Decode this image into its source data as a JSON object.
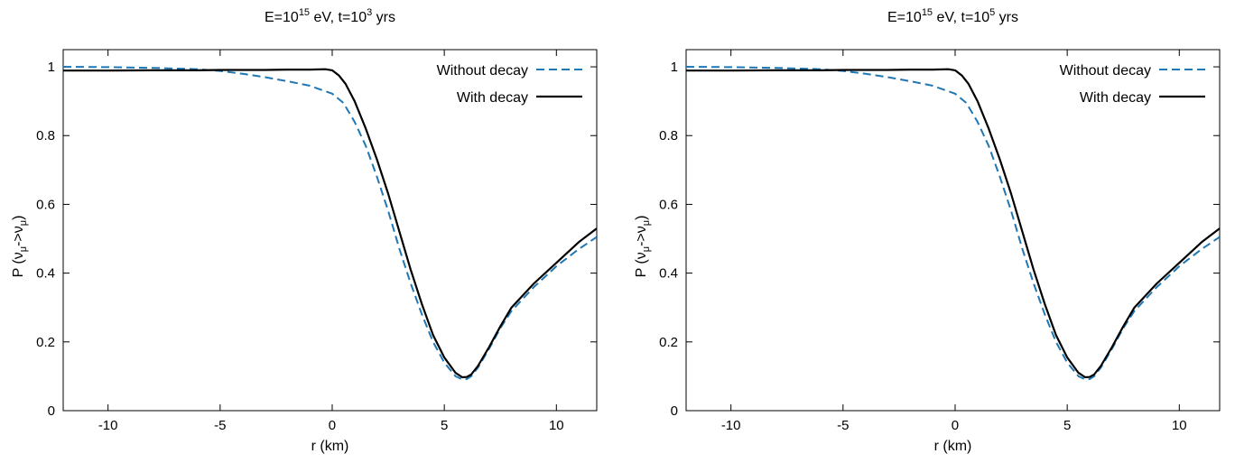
{
  "chart_data": [
    {
      "type": "line",
      "title": {
        "base": "E=10",
        "sup1": "15",
        "mid": " eV, t=10",
        "sup2": "3",
        "tail": " yrs"
      },
      "xlabel": "r (km)",
      "ylabel": {
        "p": "P (",
        "nu1": "ν",
        "sub1": "μ",
        "arrow": "->",
        "nu2": "ν",
        "sub2": "μ",
        "close": ")"
      },
      "xlim": [
        -12,
        11.8
      ],
      "ylim": [
        0,
        1.05
      ],
      "xticks": [
        -10,
        -5,
        0,
        5,
        10
      ],
      "xtick_labels": [
        "-10",
        "-5",
        "0",
        "5",
        "10"
      ],
      "yticks": [
        0,
        0.2,
        0.4,
        0.6,
        0.8,
        1
      ],
      "ytick_labels": [
        "0",
        "0.2",
        "0.4",
        "0.6",
        "0.8",
        "1"
      ],
      "legend_position": "top-right",
      "grid": false,
      "series": [
        {
          "name": "Without decay",
          "color": "#1f77b4",
          "dash": "dashed",
          "x": [
            -12,
            -10,
            -8,
            -6,
            -5,
            -4,
            -3,
            -2,
            -1,
            0,
            0.5,
            1,
            1.5,
            2,
            2.5,
            3,
            3.5,
            4,
            4.5,
            5,
            5.5,
            5.8,
            6,
            6.2,
            6.5,
            7,
            7.5,
            8,
            9,
            10,
            11,
            11.8
          ],
          "y": [
            1.0,
            0.999,
            0.997,
            0.993,
            0.988,
            0.98,
            0.97,
            0.958,
            0.945,
            0.922,
            0.895,
            0.84,
            0.77,
            0.68,
            0.58,
            0.47,
            0.37,
            0.28,
            0.2,
            0.14,
            0.1,
            0.091,
            0.092,
            0.1,
            0.125,
            0.18,
            0.24,
            0.29,
            0.36,
            0.42,
            0.47,
            0.505
          ]
        },
        {
          "name": "With decay",
          "color": "#000000",
          "dash": "solid",
          "x": [
            -12,
            -10,
            -8,
            -6,
            -5,
            -4,
            -3,
            -2,
            -1,
            -0.3,
            0,
            0.3,
            0.6,
            1,
            1.5,
            2,
            2.5,
            3,
            3.5,
            4,
            4.5,
            5,
            5.5,
            5.8,
            6,
            6.2,
            6.5,
            7,
            7.5,
            8,
            9,
            10,
            11,
            11.8
          ],
          "y": [
            0.989,
            0.989,
            0.99,
            0.99,
            0.991,
            0.991,
            0.991,
            0.992,
            0.992,
            0.993,
            0.99,
            0.975,
            0.95,
            0.9,
            0.82,
            0.73,
            0.63,
            0.52,
            0.41,
            0.31,
            0.22,
            0.155,
            0.11,
            0.097,
            0.098,
            0.105,
            0.13,
            0.185,
            0.245,
            0.3,
            0.37,
            0.43,
            0.49,
            0.53
          ]
        }
      ]
    },
    {
      "type": "line",
      "title": {
        "base": "E=10",
        "sup1": "15",
        "mid": " eV, t=10",
        "sup2": "5",
        "tail": " yrs"
      },
      "xlabel": "r (km)",
      "ylabel": {
        "p": "P (",
        "nu1": "ν",
        "sub1": "μ",
        "arrow": "->",
        "nu2": "ν",
        "sub2": "μ",
        "close": ")"
      },
      "xlim": [
        -12,
        11.8
      ],
      "ylim": [
        0,
        1.05
      ],
      "xticks": [
        -10,
        -5,
        0,
        5,
        10
      ],
      "xtick_labels": [
        "-10",
        "-5",
        "0",
        "5",
        "10"
      ],
      "yticks": [
        0,
        0.2,
        0.4,
        0.6,
        0.8,
        1
      ],
      "ytick_labels": [
        "0",
        "0.2",
        "0.4",
        "0.6",
        "0.8",
        "1"
      ],
      "legend_position": "top-right",
      "grid": false,
      "series": [
        {
          "name": "Without decay",
          "color": "#1f77b4",
          "dash": "dashed",
          "x": [
            -12,
            -10,
            -8,
            -6,
            -5,
            -4,
            -3,
            -2,
            -1,
            0,
            0.5,
            1,
            1.5,
            2,
            2.5,
            3,
            3.5,
            4,
            4.5,
            5,
            5.5,
            5.8,
            6,
            6.2,
            6.5,
            7,
            7.5,
            8,
            9,
            10,
            11,
            11.8
          ],
          "y": [
            1.0,
            0.999,
            0.997,
            0.993,
            0.988,
            0.98,
            0.97,
            0.958,
            0.945,
            0.922,
            0.895,
            0.84,
            0.77,
            0.68,
            0.58,
            0.47,
            0.37,
            0.28,
            0.2,
            0.14,
            0.1,
            0.091,
            0.092,
            0.1,
            0.125,
            0.18,
            0.24,
            0.29,
            0.36,
            0.42,
            0.47,
            0.505
          ]
        },
        {
          "name": "With decay",
          "color": "#000000",
          "dash": "solid",
          "x": [
            -12,
            -10,
            -8,
            -6,
            -5,
            -4,
            -3,
            -2,
            -1,
            -0.3,
            0,
            0.3,
            0.6,
            1,
            1.5,
            2,
            2.5,
            3,
            3.5,
            4,
            4.5,
            5,
            5.5,
            5.8,
            6,
            6.2,
            6.5,
            7,
            7.5,
            8,
            9,
            10,
            11,
            11.8
          ],
          "y": [
            0.989,
            0.989,
            0.99,
            0.99,
            0.991,
            0.991,
            0.991,
            0.992,
            0.992,
            0.993,
            0.99,
            0.975,
            0.95,
            0.9,
            0.82,
            0.73,
            0.63,
            0.52,
            0.41,
            0.31,
            0.22,
            0.155,
            0.11,
            0.097,
            0.098,
            0.105,
            0.13,
            0.185,
            0.245,
            0.3,
            0.37,
            0.43,
            0.49,
            0.53
          ]
        }
      ]
    }
  ]
}
